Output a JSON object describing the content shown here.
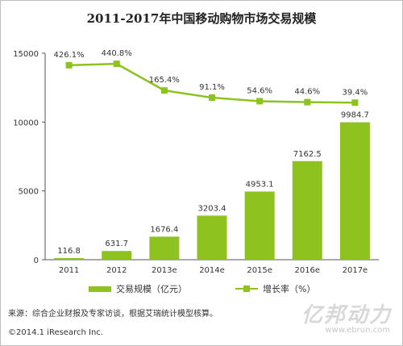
{
  "chart_data": {
    "type": "bar+line",
    "title": "2011-2017年中国移动购物市场交易规模",
    "categories": [
      "2011",
      "2012",
      "2013e",
      "2014e",
      "2015e",
      "2016e",
      "2017e"
    ],
    "series": [
      {
        "name": "交易规模（亿元）",
        "type": "bar",
        "values": [
          116.8,
          631.7,
          1676.4,
          3203.4,
          4953.1,
          7162.5,
          9984.7
        ],
        "labels": [
          "116.8",
          "631.7",
          "1676.4",
          "3203.4",
          "4953.1",
          "7162.5",
          "9984.7"
        ]
      },
      {
        "name": "增长率（%）",
        "type": "line",
        "values": [
          426.1,
          440.8,
          165.4,
          91.1,
          54.6,
          44.6,
          39.4
        ],
        "labels": [
          "426.1%",
          "440.8%",
          "165.4%",
          "91.1%",
          "54.6%",
          "44.6%",
          "39.4%"
        ]
      }
    ],
    "yticks": [
      "0",
      "5000",
      "10000",
      "15000"
    ],
    "ylim": [
      0,
      15000
    ],
    "legend_position": "bottom",
    "grid": false,
    "colors": {
      "bar": "#8dc21f",
      "line": "#8dc21f"
    }
  },
  "footer": {
    "source": "来源：综合企业财报及专家访谈，根据艾瑞统计模型核算。",
    "copyright": "©2014.1 iResearch Inc.",
    "watermark": "亿邦动力",
    "watermark_url": "www.ebrun.com"
  }
}
